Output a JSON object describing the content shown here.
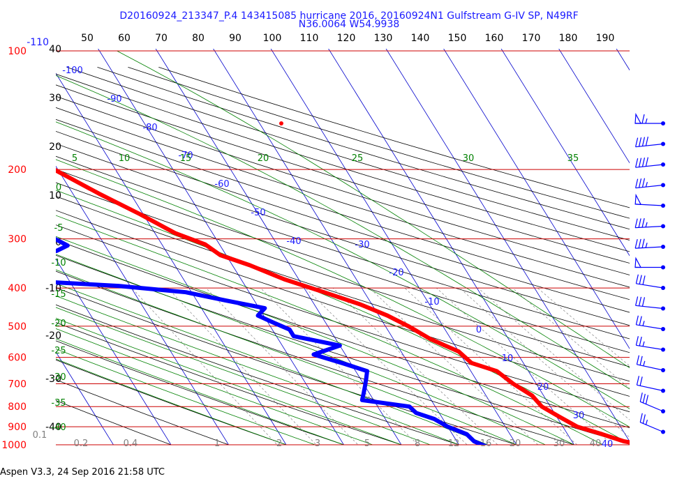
{
  "title": "D20160924_213347_P.4 143415085 hurricane 2016, 20160924N1 Gulfstream G-IV SP, N49RF",
  "subtitle": "N36.0064 W54.9938",
  "footer": "Aspen V3.3, 24 Sep 2016  21:58 UTC",
  "colors": {
    "temperature": "#ff0000",
    "dewpoint": "#0000ff",
    "isobar": "#cc0000",
    "isotherm": "#0000cc",
    "dry_adiabat": "#000000",
    "moist_adiabat": "#008000",
    "mixing_ratio": "#808080"
  },
  "chart_data": {
    "type": "line",
    "subtype": "skew-T log-P",
    "top_axis_ticks": [
      "50",
      "60",
      "70",
      "80",
      "90",
      "100",
      "110",
      "120",
      "130",
      "140",
      "150",
      "160",
      "170",
      "180",
      "190"
    ],
    "pressure_ticks": [
      "100",
      "200",
      "300",
      "400",
      "500",
      "600",
      "700",
      "800",
      "900",
      "1000"
    ],
    "pressure_values": [
      100,
      200,
      300,
      400,
      500,
      600,
      700,
      800,
      900,
      1000
    ],
    "temperature_ticks_left": [
      "-110",
      "40",
      "30",
      "20",
      "10",
      "0",
      "-10",
      "-20",
      "-30",
      "-40"
    ],
    "isotherm_labels": [
      "-100",
      "-90",
      "-80",
      "-70",
      "-60",
      "-50",
      "-40",
      "-30",
      "-20",
      "-10",
      "0",
      "10",
      "20",
      "30",
      "40"
    ],
    "isotherm_values": [
      -100,
      -90,
      -80,
      -70,
      -60,
      -50,
      -40,
      -30,
      -20,
      -10,
      0,
      10,
      20,
      30,
      40
    ],
    "moist_adiabat_labels": [
      "5",
      "10",
      "15",
      "20",
      "25",
      "30",
      "35"
    ],
    "moist_adiabat_left_labels": [
      "0",
      "-5",
      "-10",
      "-15",
      "-20",
      "-25",
      "-30",
      "-35",
      "-40"
    ],
    "mixing_ratio_labels": [
      "0.1",
      "0.2",
      "0.4",
      "1",
      "2",
      "3",
      "5",
      "8",
      "12",
      "16",
      "20",
      "30",
      "40"
    ],
    "ylim": [
      100,
      1050
    ],
    "series": [
      {
        "name": "Temperature",
        "pressure": [
          185,
          230,
          260,
          290,
          310,
          330,
          350,
          380,
          410,
          440,
          470,
          500,
          540,
          580,
          620,
          650,
          700,
          750,
          800,
          850,
          900,
          940,
          980,
          1000,
          1010
        ],
        "values": [
          -53.5,
          -45.5,
          -40.5,
          -36.5,
          -32.5,
          -31,
          -27,
          -22.5,
          -17,
          -12,
          -8.5,
          -6,
          -3.5,
          0,
          1,
          4.5,
          6,
          8,
          8.5,
          10.5,
          12.5,
          16,
          19,
          22,
          25
        ]
      },
      {
        "name": "Dewpoint",
        "pressure": [
          205,
          220,
          235,
          255,
          280,
          300,
          312,
          322,
          330,
          342,
          355,
          365,
          380,
          395,
          410,
          430,
          450,
          470,
          490,
          510,
          530,
          560,
          590,
          620,
          650,
          680,
          710,
          740,
          770,
          800,
          830,
          860,
          900,
          940,
          980,
          1020
        ],
        "values": [
          -71,
          -66,
          -64,
          -63,
          -61,
          -58,
          -56.5,
          -59,
          -66,
          -71,
          -69,
          -70,
          -72,
          -52,
          -41,
          -35,
          -29,
          -31,
          -29,
          -27,
          -27,
          -20,
          -25.5,
          -21.5,
          -18,
          -19,
          -20,
          -21,
          -22,
          -14.5,
          -14,
          -11.5,
          -10,
          -7.5,
          -7,
          -5
        ]
      }
    ],
    "wind_barbs": [
      {
        "pressure": 250,
        "speed_kt": 65,
        "direction": 250
      },
      {
        "pressure": 300,
        "speed_kt": 40,
        "direction": 260
      },
      {
        "pressure": 350,
        "speed_kt": 40,
        "direction": 260
      },
      {
        "pressure": 400,
        "speed_kt": 35,
        "direction": 260
      },
      {
        "pressure": 450,
        "speed_kt": 50,
        "direction": 245
      },
      {
        "pressure": 500,
        "speed_kt": 35,
        "direction": 255
      },
      {
        "pressure": 550,
        "speed_kt": 35,
        "direction": 255
      },
      {
        "pressure": 600,
        "speed_kt": 50,
        "direction": 250
      },
      {
        "pressure": 650,
        "speed_kt": 30,
        "direction": 235
      },
      {
        "pressure": 700,
        "speed_kt": 30,
        "direction": 240
      },
      {
        "pressure": 750,
        "speed_kt": 25,
        "direction": 235
      },
      {
        "pressure": 800,
        "speed_kt": 25,
        "direction": 235
      },
      {
        "pressure": 850,
        "speed_kt": 25,
        "direction": 230
      },
      {
        "pressure": 900,
        "speed_kt": 20,
        "direction": 230
      },
      {
        "pressure": 950,
        "speed_kt": 30,
        "direction": 215
      },
      {
        "pressure": 1000,
        "speed_kt": 25,
        "direction": 215
      }
    ]
  }
}
